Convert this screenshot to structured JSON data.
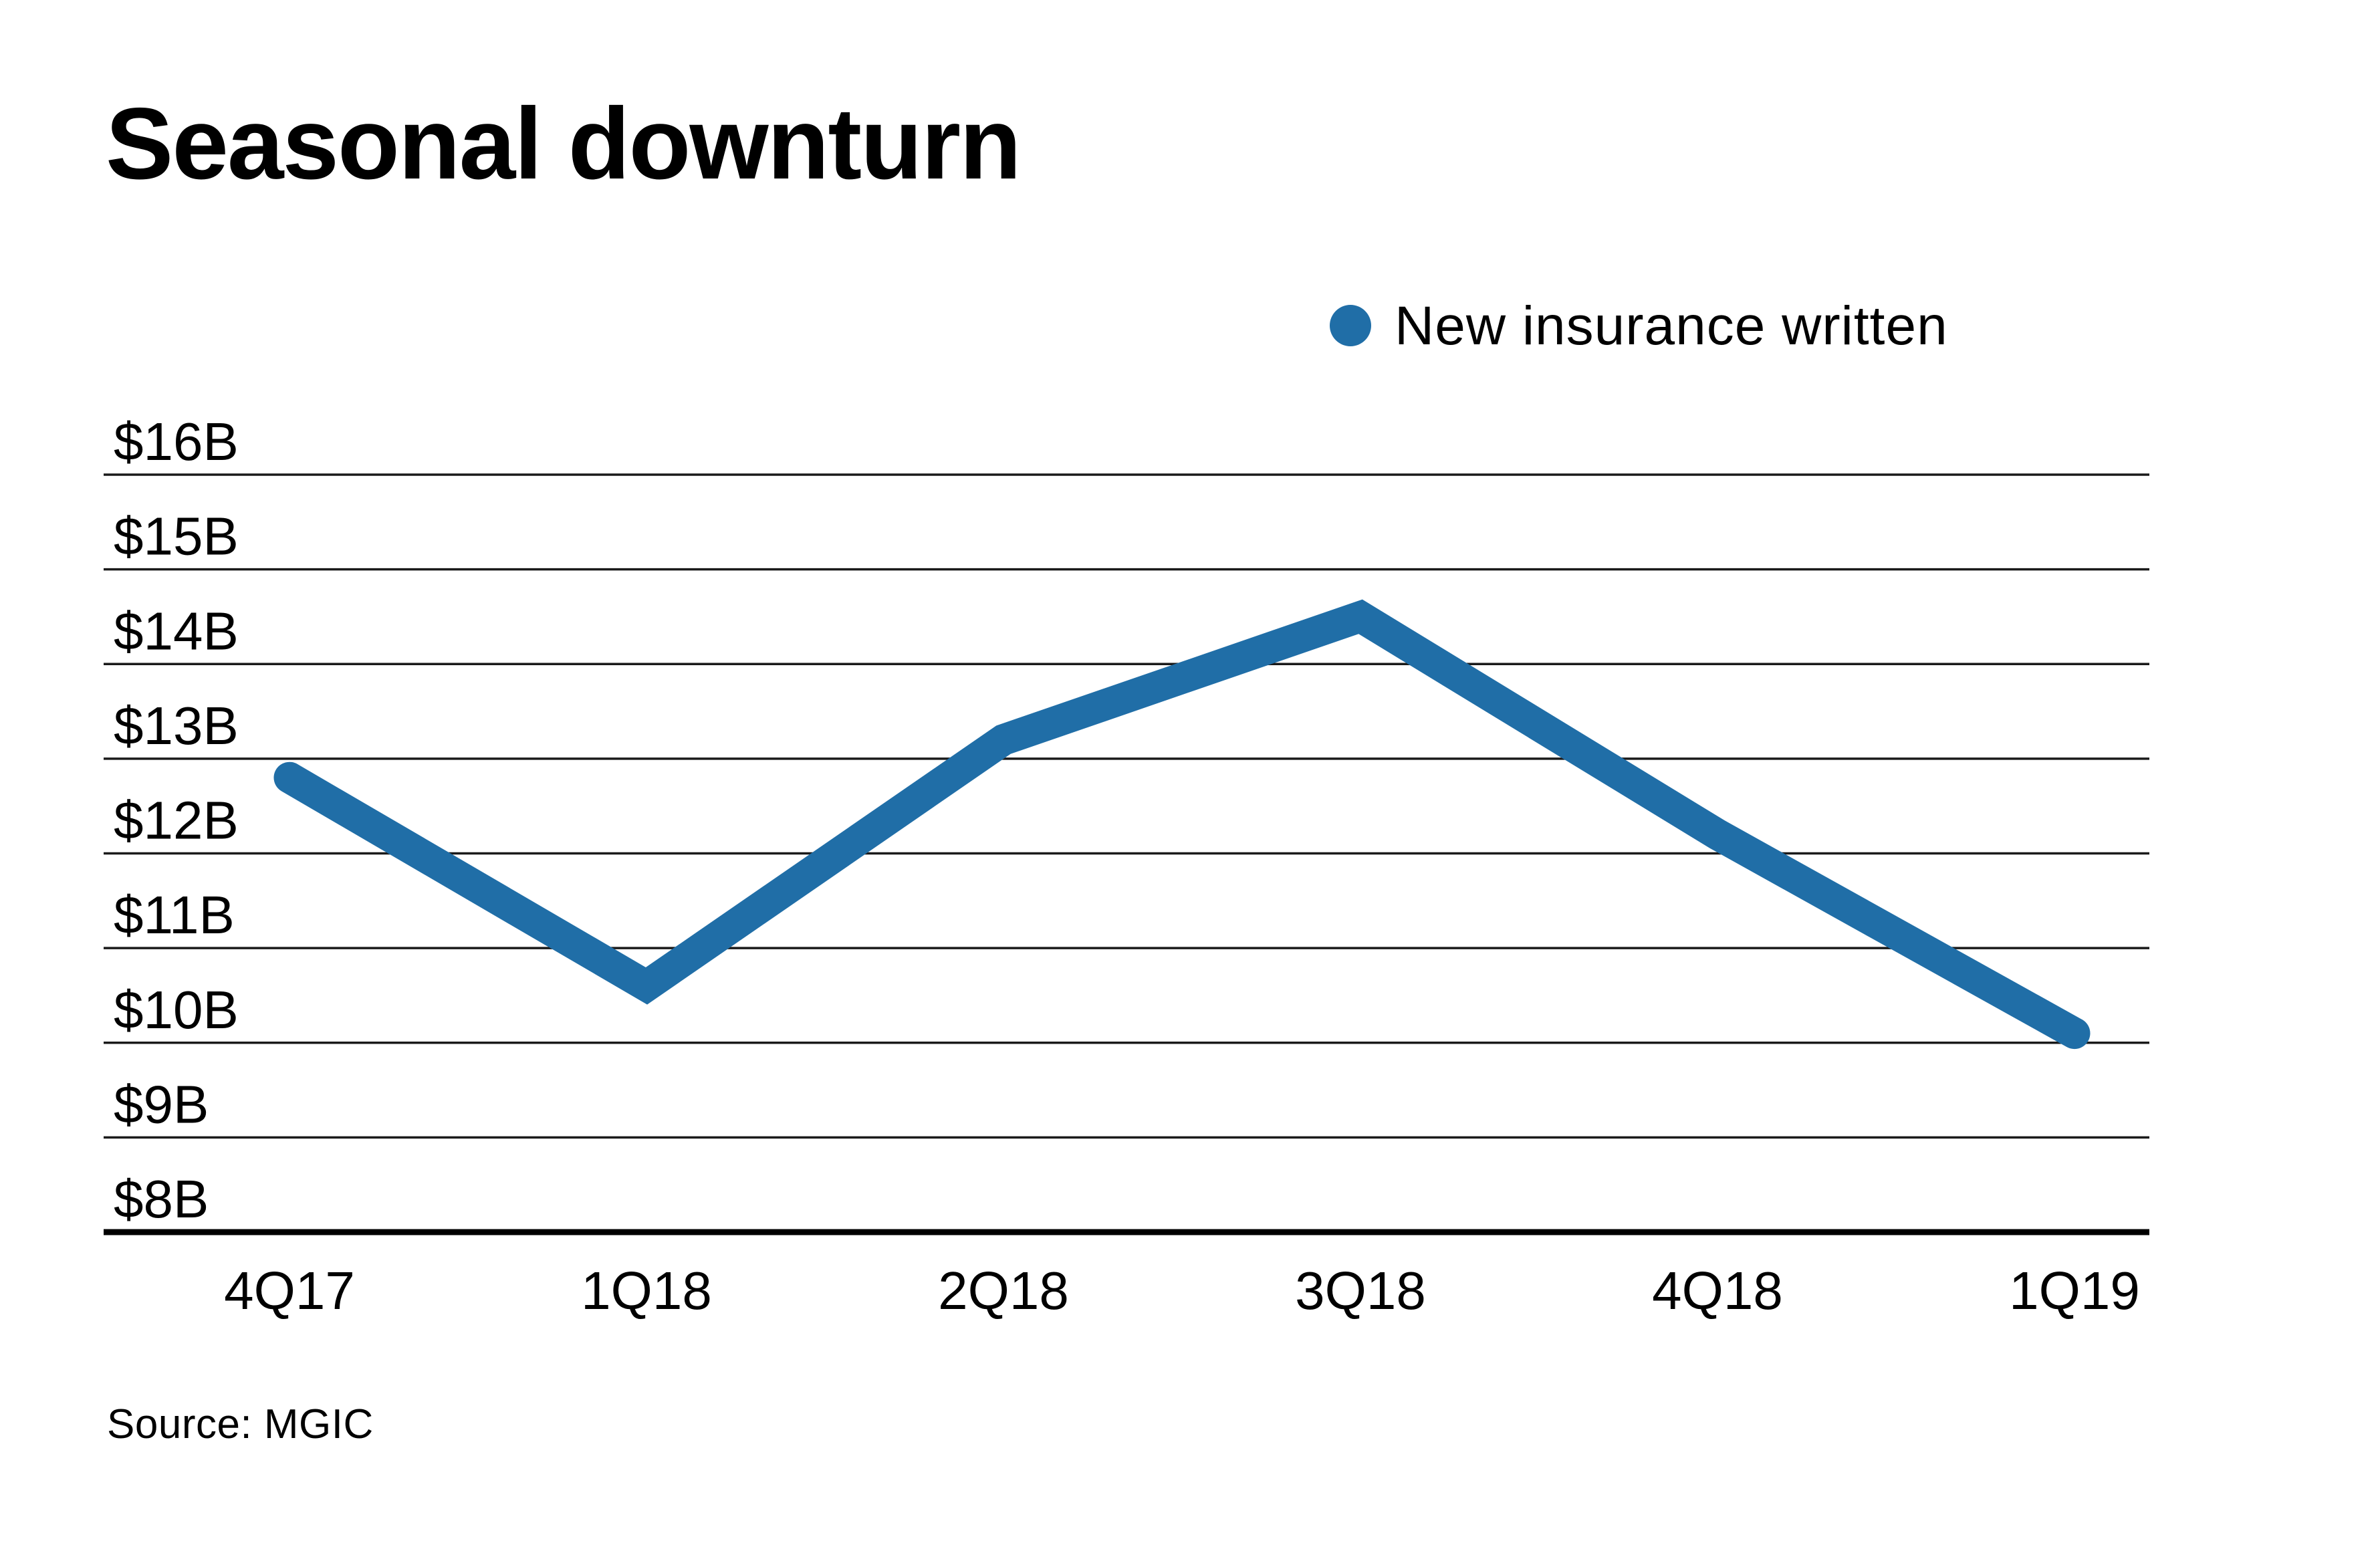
{
  "title": "Seasonal downturn",
  "source": "Source: MGIC",
  "legend": {
    "label": "New insurance written",
    "marker": "circle",
    "marker_color": "#206EA7",
    "position": "top-right"
  },
  "colors": {
    "line": "#206EA7",
    "grid": "#1a1a1a",
    "axis": "#000000",
    "text": "#000000",
    "background": "#ffffff"
  },
  "chart_data": {
    "type": "line",
    "title": "Seasonal downturn",
    "categories": [
      "4Q17",
      "1Q18",
      "2Q18",
      "3Q18",
      "4Q18",
      "1Q19"
    ],
    "series": [
      {
        "name": "New insurance written",
        "values": [
          12.8,
          10.6,
          13.2,
          14.5,
          12.2,
          10.1
        ]
      }
    ],
    "unit": "billions of dollars",
    "xlabel": "",
    "ylabel": "",
    "y_tick_labels": [
      "$16B",
      "$15B",
      "$14B",
      "$13B",
      "$12B",
      "$11B",
      "$10B",
      "$9B",
      "$8B"
    ],
    "y_tick_values": [
      16,
      15,
      14,
      13,
      12,
      11,
      10,
      9,
      8
    ],
    "ylim": [
      8,
      16
    ],
    "grid": true,
    "legend_position": "top-right",
    "source": "Source: MGIC"
  }
}
